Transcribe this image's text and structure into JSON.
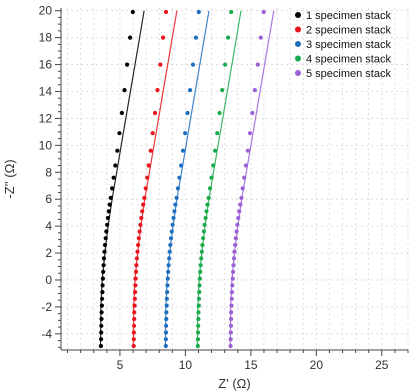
{
  "chart_data": {
    "type": "scatter",
    "xlabel": "Z' (Ω)",
    "ylabel": "-Z'' (Ω)",
    "xlim": [
      0.5,
      27
    ],
    "ylim": [
      -5.2,
      20.2
    ],
    "x_major_ticks": [
      5,
      10,
      15,
      20,
      25
    ],
    "y_major_ticks": [
      -4,
      -2,
      0,
      2,
      4,
      6,
      8,
      10,
      12,
      14,
      16,
      18,
      20
    ],
    "grid": true,
    "legend_position": "top-right",
    "series": [
      {
        "name": "1 specimen stack",
        "color": "#000000",
        "points": [
          [
            3.55,
            -4.9
          ],
          [
            3.56,
            -4.4
          ],
          [
            3.57,
            -3.9
          ],
          [
            3.58,
            -3.4
          ],
          [
            3.59,
            -2.9
          ],
          [
            3.6,
            -2.4
          ],
          [
            3.62,
            -1.9
          ],
          [
            3.64,
            -1.4
          ],
          [
            3.66,
            -0.9
          ],
          [
            3.68,
            -0.4
          ],
          [
            3.7,
            0.1
          ],
          [
            3.72,
            0.6
          ],
          [
            3.75,
            1.1
          ],
          [
            3.78,
            1.6
          ],
          [
            3.82,
            2.1
          ],
          [
            3.86,
            2.6
          ],
          [
            3.91,
            3.1
          ],
          [
            3.96,
            3.6
          ],
          [
            4.02,
            4.1
          ],
          [
            4.08,
            4.6
          ],
          [
            4.15,
            5.1
          ],
          [
            4.22,
            5.6
          ],
          [
            4.3,
            6.1
          ],
          [
            4.4,
            6.8
          ],
          [
            4.52,
            7.6
          ],
          [
            4.65,
            8.5
          ],
          [
            4.8,
            9.6
          ],
          [
            4.97,
            10.9
          ],
          [
            5.15,
            12.4
          ],
          [
            5.35,
            14.1
          ],
          [
            5.55,
            16.0
          ],
          [
            5.78,
            18.0
          ],
          [
            5.98,
            19.9
          ]
        ],
        "fit": [
          [
            3.52,
            -5.0
          ],
          [
            3.55,
            -2.0
          ],
          [
            3.65,
            0.0
          ],
          [
            3.85,
            2.0
          ],
          [
            4.1,
            4.0
          ],
          [
            4.4,
            6.0
          ],
          [
            4.75,
            8.0
          ],
          [
            5.1,
            10.0
          ],
          [
            5.45,
            12.0
          ],
          [
            5.8,
            14.0
          ],
          [
            6.15,
            16.0
          ],
          [
            6.5,
            18.0
          ],
          [
            6.85,
            20.0
          ]
        ]
      },
      {
        "name": "2 specimen stack",
        "color": "#e8141c",
        "points": [
          [
            6.05,
            -4.9
          ],
          [
            6.06,
            -4.4
          ],
          [
            6.07,
            -3.9
          ],
          [
            6.08,
            -3.4
          ],
          [
            6.09,
            -2.9
          ],
          [
            6.1,
            -2.4
          ],
          [
            6.12,
            -1.9
          ],
          [
            6.14,
            -1.4
          ],
          [
            6.16,
            -0.9
          ],
          [
            6.18,
            -0.4
          ],
          [
            6.2,
            0.1
          ],
          [
            6.23,
            0.6
          ],
          [
            6.26,
            1.1
          ],
          [
            6.3,
            1.6
          ],
          [
            6.34,
            2.1
          ],
          [
            6.39,
            2.6
          ],
          [
            6.44,
            3.1
          ],
          [
            6.5,
            3.6
          ],
          [
            6.56,
            4.1
          ],
          [
            6.63,
            4.6
          ],
          [
            6.7,
            5.1
          ],
          [
            6.78,
            5.6
          ],
          [
            6.87,
            6.1
          ],
          [
            6.97,
            6.8
          ],
          [
            7.08,
            7.6
          ],
          [
            7.2,
            8.5
          ],
          [
            7.35,
            9.6
          ],
          [
            7.5,
            10.9
          ],
          [
            7.68,
            12.4
          ],
          [
            7.87,
            14.1
          ],
          [
            8.08,
            16.0
          ],
          [
            8.3,
            18.0
          ],
          [
            8.52,
            19.9
          ]
        ],
        "fit": [
          [
            6.02,
            -5.0
          ],
          [
            6.05,
            -2.0
          ],
          [
            6.15,
            0.0
          ],
          [
            6.35,
            2.0
          ],
          [
            6.6,
            4.0
          ],
          [
            6.9,
            6.0
          ],
          [
            7.25,
            8.0
          ],
          [
            7.6,
            10.0
          ],
          [
            7.95,
            12.0
          ],
          [
            8.3,
            14.0
          ],
          [
            8.65,
            16.0
          ],
          [
            9.0,
            18.0
          ],
          [
            9.35,
            20.0
          ]
        ]
      },
      {
        "name": "3 specimen stack",
        "color": "#1f6fc0",
        "points": [
          [
            8.5,
            -4.9
          ],
          [
            8.51,
            -4.4
          ],
          [
            8.52,
            -3.9
          ],
          [
            8.53,
            -3.4
          ],
          [
            8.54,
            -2.9
          ],
          [
            8.55,
            -2.4
          ],
          [
            8.57,
            -1.9
          ],
          [
            8.59,
            -1.4
          ],
          [
            8.61,
            -0.9
          ],
          [
            8.63,
            -0.4
          ],
          [
            8.66,
            0.1
          ],
          [
            8.69,
            0.6
          ],
          [
            8.72,
            1.1
          ],
          [
            8.76,
            1.6
          ],
          [
            8.8,
            2.1
          ],
          [
            8.85,
            2.6
          ],
          [
            8.9,
            3.1
          ],
          [
            8.96,
            3.6
          ],
          [
            9.02,
            4.1
          ],
          [
            9.09,
            4.6
          ],
          [
            9.16,
            5.1
          ],
          [
            9.24,
            5.6
          ],
          [
            9.33,
            6.1
          ],
          [
            9.43,
            6.8
          ],
          [
            9.54,
            7.6
          ],
          [
            9.67,
            8.5
          ],
          [
            9.82,
            9.6
          ],
          [
            9.98,
            10.9
          ],
          [
            10.16,
            12.4
          ],
          [
            10.36,
            14.1
          ],
          [
            10.58,
            16.0
          ],
          [
            10.8,
            18.0
          ],
          [
            11.02,
            19.9
          ]
        ],
        "fit": [
          [
            8.47,
            -5.0
          ],
          [
            8.5,
            -2.0
          ],
          [
            8.6,
            0.0
          ],
          [
            8.8,
            2.0
          ],
          [
            9.05,
            4.0
          ],
          [
            9.35,
            6.0
          ],
          [
            9.7,
            8.0
          ],
          [
            10.05,
            10.0
          ],
          [
            10.4,
            12.0
          ],
          [
            10.75,
            14.0
          ],
          [
            11.1,
            16.0
          ],
          [
            11.45,
            18.0
          ],
          [
            11.8,
            20.0
          ]
        ]
      },
      {
        "name": "4 specimen stack",
        "color": "#1aaa4b",
        "points": [
          [
            10.95,
            -4.9
          ],
          [
            10.96,
            -4.4
          ],
          [
            10.97,
            -3.9
          ],
          [
            10.98,
            -3.4
          ],
          [
            10.99,
            -2.9
          ],
          [
            11.0,
            -2.4
          ],
          [
            11.02,
            -1.9
          ],
          [
            11.04,
            -1.4
          ],
          [
            11.06,
            -0.9
          ],
          [
            11.08,
            -0.4
          ],
          [
            11.11,
            0.1
          ],
          [
            11.14,
            0.6
          ],
          [
            11.17,
            1.1
          ],
          [
            11.21,
            1.6
          ],
          [
            11.25,
            2.1
          ],
          [
            11.3,
            2.6
          ],
          [
            11.35,
            3.1
          ],
          [
            11.41,
            3.6
          ],
          [
            11.47,
            4.1
          ],
          [
            11.54,
            4.6
          ],
          [
            11.61,
            5.1
          ],
          [
            11.69,
            5.6
          ],
          [
            11.78,
            6.1
          ],
          [
            11.88,
            6.8
          ],
          [
            11.99,
            7.6
          ],
          [
            12.12,
            8.5
          ],
          [
            12.27,
            9.6
          ],
          [
            12.43,
            10.9
          ],
          [
            12.61,
            12.4
          ],
          [
            12.81,
            14.1
          ],
          [
            13.03,
            16.0
          ],
          [
            13.26,
            18.0
          ],
          [
            13.5,
            19.9
          ]
        ],
        "fit": [
          [
            10.92,
            -5.0
          ],
          [
            10.95,
            -2.0
          ],
          [
            11.05,
            0.0
          ],
          [
            11.25,
            2.0
          ],
          [
            11.5,
            4.0
          ],
          [
            11.8,
            6.0
          ],
          [
            12.15,
            8.0
          ],
          [
            12.5,
            10.0
          ],
          [
            12.85,
            12.0
          ],
          [
            13.2,
            14.0
          ],
          [
            13.55,
            16.0
          ],
          [
            13.9,
            18.0
          ],
          [
            14.25,
            20.0
          ]
        ]
      },
      {
        "name": "5 specimen stack",
        "color": "#9b5fd6",
        "points": [
          [
            13.45,
            -4.9
          ],
          [
            13.46,
            -4.4
          ],
          [
            13.47,
            -3.9
          ],
          [
            13.48,
            -3.4
          ],
          [
            13.49,
            -2.9
          ],
          [
            13.5,
            -2.4
          ],
          [
            13.52,
            -1.9
          ],
          [
            13.54,
            -1.4
          ],
          [
            13.56,
            -0.9
          ],
          [
            13.58,
            -0.4
          ],
          [
            13.61,
            0.1
          ],
          [
            13.64,
            0.6
          ],
          [
            13.67,
            1.1
          ],
          [
            13.71,
            1.6
          ],
          [
            13.75,
            2.1
          ],
          [
            13.8,
            2.6
          ],
          [
            13.85,
            3.1
          ],
          [
            13.91,
            3.6
          ],
          [
            13.97,
            4.1
          ],
          [
            14.04,
            4.6
          ],
          [
            14.11,
            5.1
          ],
          [
            14.19,
            5.6
          ],
          [
            14.28,
            6.1
          ],
          [
            14.38,
            6.8
          ],
          [
            14.49,
            7.6
          ],
          [
            14.62,
            8.5
          ],
          [
            14.77,
            9.6
          ],
          [
            14.93,
            10.9
          ],
          [
            15.11,
            12.4
          ],
          [
            15.31,
            14.1
          ],
          [
            15.53,
            16.0
          ],
          [
            15.76,
            18.0
          ],
          [
            15.98,
            19.9
          ]
        ],
        "fit": [
          [
            13.42,
            -5.0
          ],
          [
            13.45,
            -2.0
          ],
          [
            13.55,
            0.0
          ],
          [
            13.75,
            2.0
          ],
          [
            14.0,
            4.0
          ],
          [
            14.3,
            6.0
          ],
          [
            14.65,
            8.0
          ],
          [
            15.0,
            10.0
          ],
          [
            15.35,
            12.0
          ],
          [
            15.7,
            14.0
          ],
          [
            16.05,
            16.0
          ],
          [
            16.4,
            18.0
          ],
          [
            16.75,
            20.0
          ]
        ]
      }
    ]
  }
}
